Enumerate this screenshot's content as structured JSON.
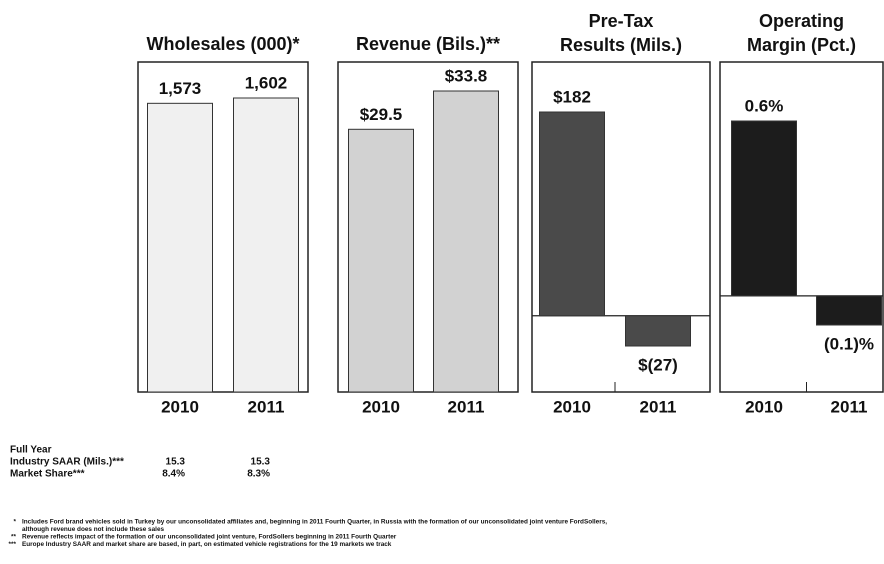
{
  "chart_data": [
    {
      "type": "bar",
      "title": [
        "Wholesales (000)*"
      ],
      "categories": [
        "2010",
        "2011"
      ],
      "values": [
        1573,
        1602
      ],
      "value_labels": [
        "1,573",
        "1,602"
      ],
      "color": "#f0f0f0"
    },
    {
      "type": "bar",
      "title": [
        "Revenue (Bils.)**"
      ],
      "categories": [
        "2010",
        "2011"
      ],
      "values": [
        29.5,
        33.8
      ],
      "value_labels": [
        "$29.5",
        "$33.8"
      ],
      "color": "#d2d2d2"
    },
    {
      "type": "bar",
      "title": [
        "Pre-Tax",
        "Results (Mils.)"
      ],
      "categories": [
        "2010",
        "2011"
      ],
      "values": [
        182,
        -27
      ],
      "value_labels": [
        "$182",
        "$(27)"
      ],
      "color": "#4a4a4a"
    },
    {
      "type": "bar",
      "title": [
        "Operating",
        "Margin (Pct.)"
      ],
      "categories": [
        "2010",
        "2011"
      ],
      "values": [
        0.6,
        -0.1
      ],
      "value_labels": [
        "0.6%",
        "(0.1)%"
      ],
      "color": "#1c1c1c"
    }
  ],
  "summary": {
    "heading": "Full Year",
    "rows": [
      [
        "Industry SAAR (Mils.)***",
        "15.3",
        "15.3"
      ],
      [
        "Market Share***",
        "8.4%",
        "8.3%"
      ]
    ]
  },
  "footnotes": [
    {
      "mark": "*",
      "lines": [
        "Includes Ford brand vehicles sold in Turkey by our unconsolidated affiliates and, beginning in 2011 Fourth Quarter, in Russia with the formation of our unconsolidated joint venture FordSollers,",
        "although revenue does not include these sales"
      ]
    },
    {
      "mark": "**",
      "lines": [
        "Revenue reflects impact of the formation of our unconsolidated joint venture, FordSollers beginning in 2011 Fourth Quarter"
      ]
    },
    {
      "mark": "***",
      "lines": [
        "Europe Industry SAAR and market share are based, in part, on estimated vehicle registrations for the 19 markets we track"
      ]
    }
  ]
}
